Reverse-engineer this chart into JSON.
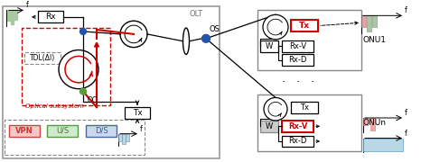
{
  "fig_width": 4.66,
  "fig_height": 1.8,
  "dpi": 100,
  "red": "#cc0000",
  "green_dot": "#5a9e3a",
  "blue_dot": "#2255aa",
  "gray": "#888888",
  "light_blue_bar": "#b8d8e8",
  "light_green_bar": "#a8c8a0",
  "light_red_bar": "#e8a0a0",
  "olt_label": "OLT",
  "os_label": "OS",
  "onu1_label": "ONU1",
  "onun_label": "ONUn",
  "oc_label": "OC",
  "tx_label": "Tx",
  "rx_label": "Rx",
  "rxv_label": "Rx-V",
  "rxd_label": "Rx-D",
  "w_label": "W",
  "vpn_label": "VPN",
  "us_label": "U/S",
  "ds_label": "D/S",
  "tdl_label": "TDL(Δl)",
  "optical_subsystem_label": "Optical subsystem",
  "f_label": "f"
}
